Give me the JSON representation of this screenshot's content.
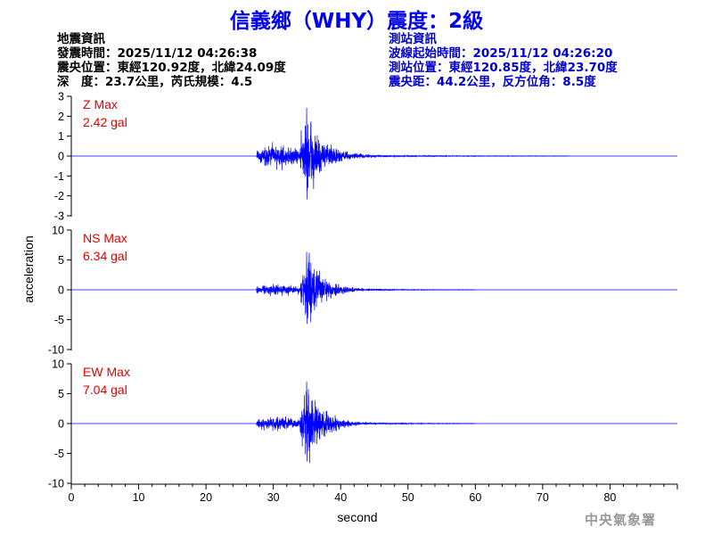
{
  "title": "信義鄉（WHY）震度：2級",
  "quake_info": {
    "heading": "地震資訊",
    "origin_time": "發震時間：2025/11/12 04:26:38",
    "epicenter": "震央位置：東經120.92度，北緯24.09度",
    "depth_magnitude": "深　度：23.7公里，芮氏規模：4.5"
  },
  "station_info": {
    "heading": "測站資訊",
    "wave_start": "波線起始時間：2025/11/12 04:26:20",
    "station_location": "測站位置：東經120.85度，北緯23.70度",
    "distance": "震央距：44.2公里，反方位角：8.5度"
  },
  "agency": "中央氣象署",
  "colors": {
    "trace": "#0000ff",
    "label": "#e00000",
    "title": "#0000ee"
  },
  "chart_data": [
    {
      "type": "line",
      "name": "Z",
      "label": "Z Max",
      "max_label": "2.42 gal",
      "xlim": [
        0,
        90
      ],
      "ylim": [
        -3,
        3
      ],
      "yticks": [
        -3,
        -2,
        -1,
        0,
        1,
        2,
        3
      ],
      "peak": 2.42,
      "signal_start": 27.5,
      "p_amplitude": 0.55,
      "s_arrival": 34.0,
      "s_amplitude": 2.42,
      "tail_end": 74
    },
    {
      "type": "line",
      "name": "NS",
      "label": "NS Max",
      "max_label": "6.34 gal",
      "xlim": [
        0,
        90
      ],
      "ylim": [
        -10,
        10
      ],
      "yticks": [
        -10,
        -5,
        0,
        5,
        10
      ],
      "peak": 6.34,
      "signal_start": 27.5,
      "p_amplitude": 1.0,
      "s_arrival": 34.0,
      "s_amplitude": 6.34,
      "tail_end": 60
    },
    {
      "type": "line",
      "name": "EW",
      "label": "EW Max",
      "max_label": "7.04 gal",
      "xlim": [
        0,
        90
      ],
      "ylim": [
        -10,
        10
      ],
      "yticks": [
        -10,
        -5,
        0,
        5,
        10
      ],
      "peak": 7.04,
      "signal_start": 27.5,
      "p_amplitude": 1.2,
      "s_arrival": 34.0,
      "s_amplitude": 7.04,
      "tail_end": 60
    }
  ],
  "x_axis": {
    "label": "second",
    "ticks": [
      0,
      10,
      20,
      30,
      40,
      50,
      60,
      70,
      80
    ]
  },
  "y_axis": {
    "label": "acceleration"
  }
}
